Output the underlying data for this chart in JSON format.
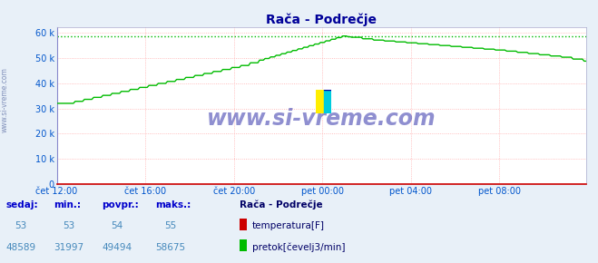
{
  "title": "Rača - Podrečje",
  "bg_color": "#e8f0f8",
  "plot_bg_color": "#ffffff",
  "grid_color_pink": "#ffaaaa",
  "grid_color_v": "#dddddd",
  "ylabel_color": "#0055cc",
  "xlabel_color": "#0055cc",
  "title_color": "#000099",
  "watermark": "www.si-vreme.com",
  "xlim_max": 287,
  "ylim_max": 62000,
  "yticks": [
    0,
    10000,
    20000,
    30000,
    40000,
    50000,
    60000
  ],
  "ytick_labels": [
    "0",
    "10 k",
    "20 k",
    "30 k",
    "40 k",
    "50 k",
    "60 k"
  ],
  "xtick_positions": [
    0,
    48,
    96,
    144,
    192,
    240
  ],
  "xtick_labels": [
    "čet 12:00",
    "čet 16:00",
    "čet 20:00",
    "pet 00:00",
    "pet 04:00",
    "pet 08:00"
  ],
  "flow_color": "#00bb00",
  "temp_color": "#cc0000",
  "dashed_line_color": "#00bb00",
  "dashed_line_value": 58675,
  "temp_value": 53,
  "temp_min": 53,
  "temp_avg": 54,
  "temp_max": 55,
  "flow_value": 48589,
  "flow_min": 31997,
  "flow_avg": 49494,
  "flow_max": 58675,
  "legend_station": "Rača - Podrečje",
  "legend_temp": "temperatura[F]",
  "legend_flow": "pretok[čevelj3/min]",
  "sidebar_text": "www.si-vreme.com",
  "n_points": 288
}
